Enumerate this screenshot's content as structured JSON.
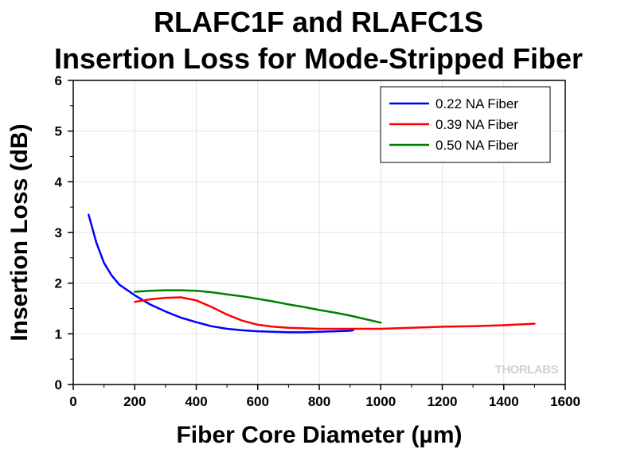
{
  "chart_data": {
    "type": "line",
    "title": "RLAFC1F and RLAFC1S",
    "subtitle": "Insertion Loss for Mode-Stripped Fiber",
    "xlabel": "Fiber Core Diameter (µm)",
    "ylabel": "Insertion Loss (dB)",
    "xlim": [
      0,
      1600
    ],
    "ylim": [
      0,
      6
    ],
    "xticks": [
      0,
      200,
      400,
      600,
      800,
      1000,
      1200,
      1400,
      1600
    ],
    "yticks": [
      0,
      1,
      2,
      3,
      4,
      5,
      6
    ],
    "grid": true,
    "legend_position": "top-right",
    "series": [
      {
        "name": "0.22 NA Fiber",
        "color": "#0000ff",
        "points": [
          [
            50,
            3.35
          ],
          [
            75,
            2.8
          ],
          [
            100,
            2.4
          ],
          [
            125,
            2.15
          ],
          [
            150,
            1.97
          ],
          [
            200,
            1.76
          ],
          [
            250,
            1.58
          ],
          [
            300,
            1.44
          ],
          [
            350,
            1.32
          ],
          [
            400,
            1.23
          ],
          [
            450,
            1.15
          ],
          [
            500,
            1.1
          ],
          [
            550,
            1.07
          ],
          [
            600,
            1.05
          ],
          [
            650,
            1.04
          ],
          [
            700,
            1.03
          ],
          [
            750,
            1.03
          ],
          [
            800,
            1.04
          ],
          [
            850,
            1.05
          ],
          [
            900,
            1.06
          ],
          [
            910,
            1.07
          ]
        ]
      },
      {
        "name": "0.39 NA Fiber",
        "color": "#ff0000",
        "points": [
          [
            200,
            1.63
          ],
          [
            250,
            1.68
          ],
          [
            300,
            1.71
          ],
          [
            350,
            1.72
          ],
          [
            400,
            1.66
          ],
          [
            450,
            1.53
          ],
          [
            500,
            1.38
          ],
          [
            550,
            1.26
          ],
          [
            600,
            1.18
          ],
          [
            650,
            1.14
          ],
          [
            700,
            1.12
          ],
          [
            800,
            1.1
          ],
          [
            900,
            1.1
          ],
          [
            1000,
            1.1
          ],
          [
            1100,
            1.12
          ],
          [
            1200,
            1.14
          ],
          [
            1300,
            1.15
          ],
          [
            1400,
            1.17
          ],
          [
            1500,
            1.2
          ]
        ]
      },
      {
        "name": "0.50 NA Fiber",
        "color": "#008000",
        "points": [
          [
            200,
            1.83
          ],
          [
            250,
            1.85
          ],
          [
            300,
            1.86
          ],
          [
            350,
            1.86
          ],
          [
            400,
            1.85
          ],
          [
            450,
            1.82
          ],
          [
            500,
            1.78
          ],
          [
            550,
            1.74
          ],
          [
            600,
            1.69
          ],
          [
            650,
            1.64
          ],
          [
            700,
            1.58
          ],
          [
            750,
            1.53
          ],
          [
            800,
            1.47
          ],
          [
            850,
            1.42
          ],
          [
            900,
            1.36
          ],
          [
            950,
            1.29
          ],
          [
            1000,
            1.22
          ]
        ]
      }
    ]
  },
  "watermark": "THORLABS"
}
